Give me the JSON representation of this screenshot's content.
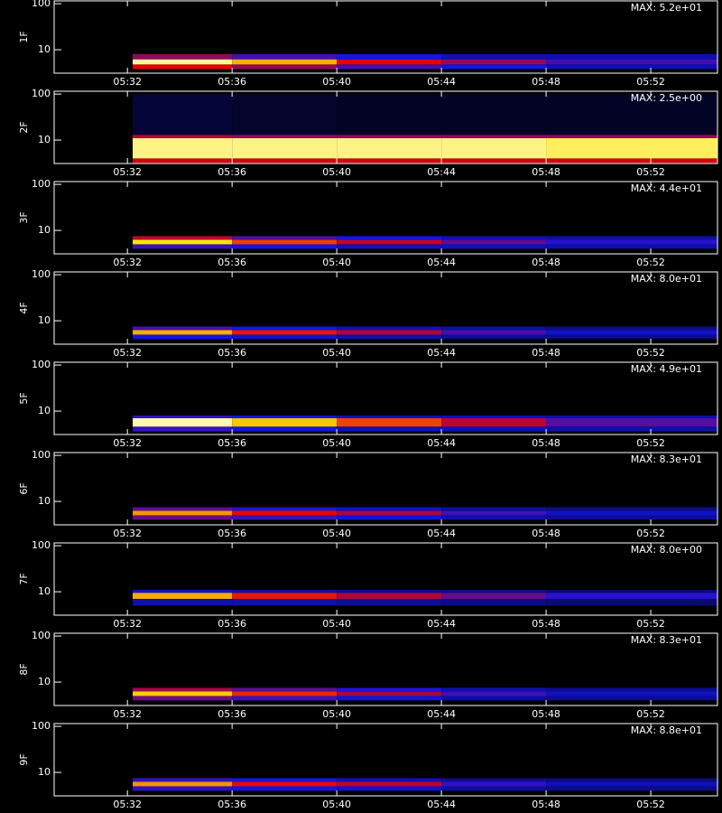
{
  "chart_data": [
    {
      "type": "heatmap",
      "ylabel": "1F",
      "annotation": "MAX: 5.2e+01",
      "max": 52,
      "xlim": [
        329.2,
        354.55
      ],
      "xticks": [
        {
          "value": 332,
          "label": "05:32"
        },
        {
          "value": 336,
          "label": "05:36"
        },
        {
          "value": 340,
          "label": "05:40"
        },
        {
          "value": 344,
          "label": "05:44"
        },
        {
          "value": 348,
          "label": "05:48"
        },
        {
          "value": 352,
          "label": "05:52"
        }
      ],
      "ylim": [
        3.1,
        115
      ],
      "yticks": [
        10,
        100
      ],
      "log_y": true,
      "x_edges": [
        332.2,
        336,
        340,
        344,
        348,
        354.55
      ],
      "y_edges": [
        3.8,
        4.8,
        6.2,
        8
      ],
      "values": [
        [
          26,
          21,
          16,
          13,
          10
        ],
        [
          47,
          36,
          26,
          21,
          16
        ],
        [
          21,
          16,
          13,
          10,
          10
        ]
      ]
    },
    {
      "type": "heatmap",
      "ylabel": "2F",
      "annotation": "MAX: 2.5e+00",
      "max": 2.5,
      "xlim": [
        329.2,
        354.55
      ],
      "xticks": [
        {
          "value": 332,
          "label": "05:32"
        },
        {
          "value": 336,
          "label": "05:36"
        },
        {
          "value": 340,
          "label": "05:40"
        },
        {
          "value": 344,
          "label": "05:44"
        },
        {
          "value": 348,
          "label": "05:48"
        },
        {
          "value": 352,
          "label": "05:52"
        }
      ],
      "ylim": [
        3.1,
        115
      ],
      "yticks": [
        10,
        100
      ],
      "log_y": true,
      "x_edges": [
        332.2,
        336,
        340,
        344,
        348,
        354.55
      ],
      "y_edges": [
        3.2,
        4,
        11,
        13,
        100
      ],
      "values": [
        [
          1.2,
          1.2,
          1.2,
          1.2,
          1.2
        ],
        [
          2.2,
          2.2,
          2.2,
          2.2,
          2.1
        ],
        [
          1.1,
          1,
          1,
          1,
          1
        ],
        [
          0.15,
          0.12,
          0.1,
          0.1,
          0.1
        ]
      ]
    },
    {
      "type": "heatmap",
      "ylabel": "3F",
      "annotation": "MAX: 4.4e+01",
      "max": 44,
      "xlim": [
        329.2,
        354.55
      ],
      "xticks": [
        {
          "value": 332,
          "label": "05:32"
        },
        {
          "value": 336,
          "label": "05:36"
        },
        {
          "value": 340,
          "label": "05:40"
        },
        {
          "value": 344,
          "label": "05:44"
        },
        {
          "value": 348,
          "label": "05:48"
        },
        {
          "value": 352,
          "label": "05:52"
        }
      ],
      "ylim": [
        3.1,
        115
      ],
      "yticks": [
        10,
        100
      ],
      "log_y": true,
      "x_edges": [
        332.2,
        336,
        340,
        344,
        348,
        354.55
      ],
      "y_edges": [
        4,
        5,
        6.3,
        7.5
      ],
      "values": [
        [
          13,
          11,
          9,
          9,
          8
        ],
        [
          33,
          25,
          20,
          15,
          12
        ],
        [
          20,
          14,
          11,
          9,
          8
        ]
      ]
    },
    {
      "type": "heatmap",
      "ylabel": "4F",
      "annotation": "MAX: 8.0e+01",
      "max": 80,
      "xlim": [
        329.2,
        354.55
      ],
      "xticks": [
        {
          "value": 332,
          "label": "05:32"
        },
        {
          "value": 336,
          "label": "05:36"
        },
        {
          "value": 340,
          "label": "05:40"
        },
        {
          "value": 344,
          "label": "05:44"
        },
        {
          "value": 348,
          "label": "05:48"
        },
        {
          "value": 352,
          "label": "05:52"
        }
      ],
      "ylim": [
        3.1,
        115
      ],
      "yticks": [
        10,
        100
      ],
      "log_y": true,
      "x_edges": [
        332.2,
        336,
        340,
        344,
        348,
        354.55
      ],
      "y_edges": [
        4,
        5,
        6.3,
        7.5
      ],
      "values": [
        [
          20,
          18,
          15,
          13,
          12
        ],
        [
          55,
          42,
          35,
          25,
          18
        ],
        [
          25,
          20,
          16,
          14,
          12
        ]
      ]
    },
    {
      "type": "heatmap",
      "ylabel": "5F",
      "annotation": "MAX: 4.9e+01",
      "max": 49,
      "xlim": [
        329.2,
        354.55
      ],
      "xticks": [
        {
          "value": 332,
          "label": "05:32"
        },
        {
          "value": 336,
          "label": "05:36"
        },
        {
          "value": 340,
          "label": "05:40"
        },
        {
          "value": 344,
          "label": "05:44"
        },
        {
          "value": 348,
          "label": "05:48"
        },
        {
          "value": 352,
          "label": "05:52"
        }
      ],
      "ylim": [
        3.1,
        115
      ],
      "yticks": [
        10,
        100
      ],
      "log_y": true,
      "x_edges": [
        332.2,
        336,
        340,
        344,
        348,
        354.55
      ],
      "y_edges": [
        3.6,
        4.6,
        7,
        8
      ],
      "values": [
        [
          14,
          12,
          10,
          10,
          9
        ],
        [
          45,
          35,
          28,
          22,
          16
        ],
        [
          14,
          12,
          10,
          10,
          9
        ]
      ]
    },
    {
      "type": "heatmap",
      "ylabel": "6F",
      "annotation": "MAX: 8.3e+01",
      "max": 83,
      "xlim": [
        329.2,
        354.55
      ],
      "xticks": [
        {
          "value": 332,
          "label": "05:32"
        },
        {
          "value": 336,
          "label": "05:36"
        },
        {
          "value": 340,
          "label": "05:40"
        },
        {
          "value": 344,
          "label": "05:44"
        },
        {
          "value": 348,
          "label": "05:48"
        },
        {
          "value": 352,
          "label": "05:52"
        }
      ],
      "ylim": [
        3.1,
        115
      ],
      "yticks": [
        10,
        100
      ],
      "log_y": true,
      "x_edges": [
        332.2,
        336,
        340,
        344,
        348,
        354.55
      ],
      "y_edges": [
        4,
        5,
        6.3,
        7.5
      ],
      "values": [
        [
          30,
          25,
          20,
          16,
          14
        ],
        [
          55,
          42,
          35,
          25,
          18
        ],
        [
          28,
          22,
          18,
          14,
          12
        ]
      ]
    },
    {
      "type": "heatmap",
      "ylabel": "7F",
      "annotation": "MAX: 8.0e+00",
      "max": 8,
      "xlim": [
        329.2,
        354.55
      ],
      "xticks": [
        {
          "value": 332,
          "label": "05:32"
        },
        {
          "value": 336,
          "label": "05:36"
        },
        {
          "value": 340,
          "label": "05:40"
        },
        {
          "value": 344,
          "label": "05:44"
        },
        {
          "value": 348,
          "label": "05:48"
        },
        {
          "value": 352,
          "label": "05:52"
        }
      ],
      "ylim": [
        3.1,
        115
      ],
      "yticks": [
        10,
        100
      ],
      "log_y": true,
      "x_edges": [
        332.2,
        336,
        340,
        344,
        348,
        354.55
      ],
      "y_edges": [
        5,
        7,
        9.5,
        11
      ],
      "values": [
        [
          1.5,
          1.5,
          1.3,
          1.2,
          1
        ],
        [
          5.5,
          4.2,
          3.5,
          2.8,
          2.2
        ],
        [
          1.8,
          1.5,
          1.3,
          1.2,
          1
        ]
      ]
    },
    {
      "type": "heatmap",
      "ylabel": "8F",
      "annotation": "MAX: 8.3e+01",
      "max": 83,
      "xlim": [
        329.2,
        354.55
      ],
      "xticks": [
        {
          "value": 332,
          "label": "05:32"
        },
        {
          "value": 336,
          "label": "05:36"
        },
        {
          "value": 340,
          "label": "05:40"
        },
        {
          "value": 344,
          "label": "05:44"
        },
        {
          "value": 348,
          "label": "05:48"
        },
        {
          "value": 352,
          "label": "05:52"
        }
      ],
      "ylim": [
        3.1,
        115
      ],
      "yticks": [
        10,
        100
      ],
      "log_y": true,
      "x_edges": [
        332.2,
        336,
        340,
        344,
        348,
        354.55
      ],
      "y_edges": [
        4,
        5,
        6.3,
        7.5
      ],
      "values": [
        [
          30,
          25,
          20,
          15,
          13
        ],
        [
          60,
          45,
          35,
          25,
          18
        ],
        [
          35,
          28,
          22,
          16,
          13
        ]
      ]
    },
    {
      "type": "heatmap",
      "ylabel": "9F",
      "annotation": "MAX: 8.8e+01",
      "max": 88,
      "xlim": [
        329.2,
        354.55
      ],
      "xticks": [
        {
          "value": 332,
          "label": "05:32"
        },
        {
          "value": 336,
          "label": "05:36"
        },
        {
          "value": 340,
          "label": "05:40"
        },
        {
          "value": 344,
          "label": "05:44"
        },
        {
          "value": 348,
          "label": "05:48"
        },
        {
          "value": 352,
          "label": "05:52"
        }
      ],
      "ylim": [
        3.1,
        115
      ],
      "yticks": [
        10,
        100
      ],
      "log_y": true,
      "x_edges": [
        332.2,
        336,
        340,
        344,
        348,
        354.55
      ],
      "y_edges": [
        4,
        5,
        6.3,
        7.5
      ],
      "values": [
        [
          25,
          22,
          20,
          15,
          13
        ],
        [
          58,
          45,
          40,
          25,
          18
        ],
        [
          25,
          22,
          18,
          14,
          12
        ]
      ]
    }
  ]
}
